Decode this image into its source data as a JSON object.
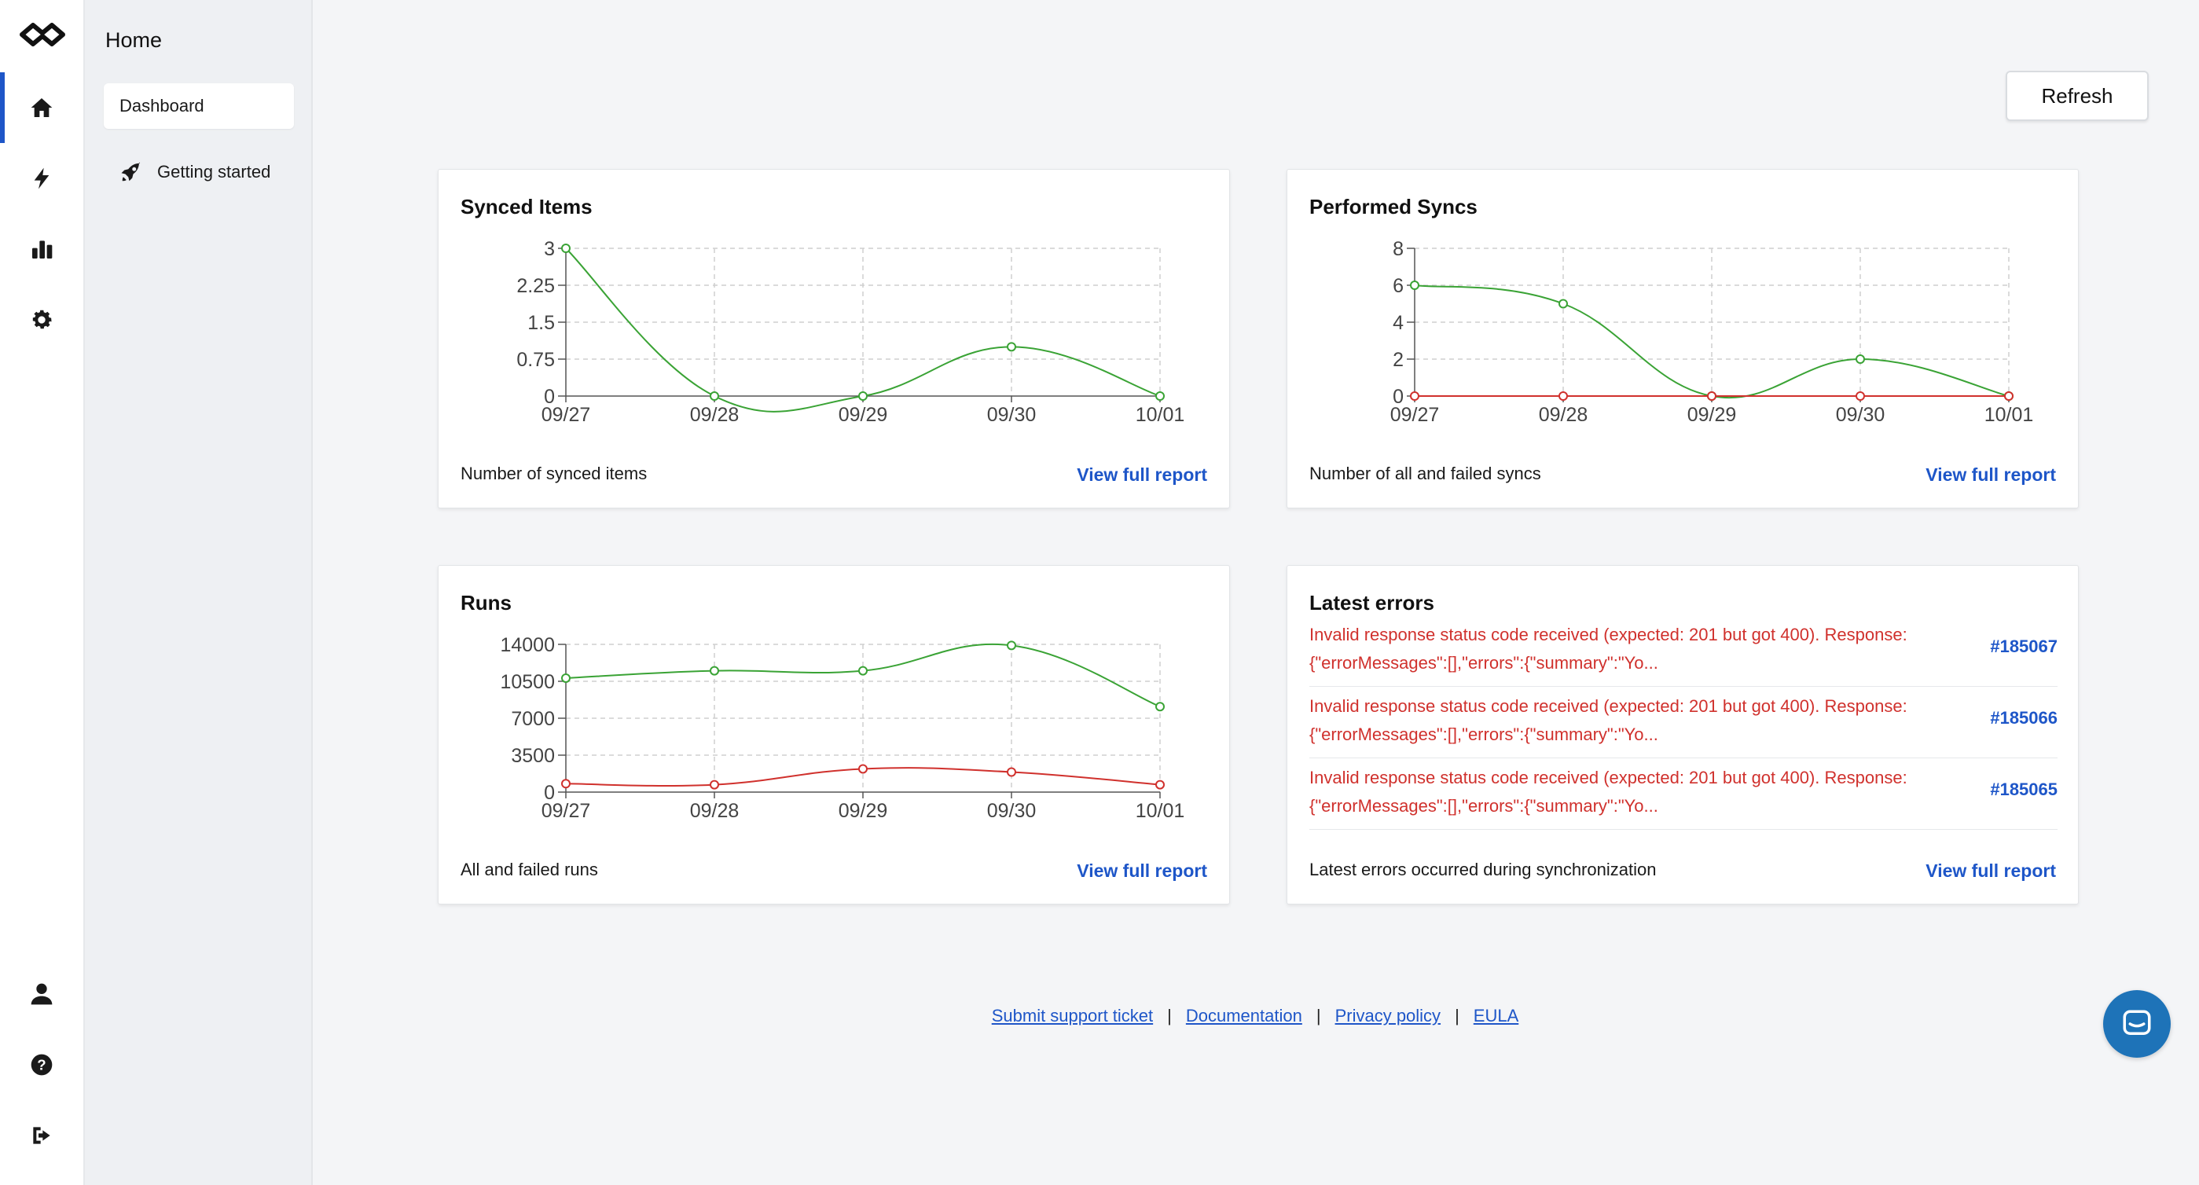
{
  "sidebar": {
    "section_title": "Home",
    "items": [
      {
        "label": "Dashboard"
      },
      {
        "label": "Getting started"
      }
    ]
  },
  "header": {
    "refresh_label": "Refresh"
  },
  "cards": {
    "synced_items": {
      "title": "Synced Items",
      "caption": "Number of synced items",
      "link": "View full report"
    },
    "performed_syncs": {
      "title": "Performed Syncs",
      "caption": "Number of all and failed syncs",
      "link": "View full report"
    },
    "runs": {
      "title": "Runs",
      "caption": "All and failed runs",
      "link": "View full report"
    },
    "latest_errors": {
      "title": "Latest errors",
      "caption": "Latest errors occurred during synchronization",
      "link": "View full report",
      "rows": [
        {
          "line1": "Invalid response status code received (expected: 201 but got 400). Response:",
          "line2": "{\"errorMessages\":[],\"errors\":{\"summary\":\"Yo...",
          "id": "#185067"
        },
        {
          "line1": "Invalid response status code received (expected: 201 but got 400). Response:",
          "line2": "{\"errorMessages\":[],\"errors\":{\"summary\":\"Yo...",
          "id": "#185066"
        },
        {
          "line1": "Invalid response status code received (expected: 201 but got 400). Response:",
          "line2": "{\"errorMessages\":[],\"errors\":{\"summary\":\"Yo...",
          "id": "#185065"
        }
      ]
    }
  },
  "footer": {
    "links": [
      "Submit support ticket",
      "Documentation",
      "Privacy policy",
      "EULA"
    ],
    "separator": "|"
  },
  "colors": {
    "accent": "#1e56c8",
    "success": "#3aa335",
    "error": "#d0312d"
  },
  "chart_data": [
    {
      "type": "line",
      "categories": [
        "09/27",
        "09/28",
        "09/29",
        "09/30",
        "10/01"
      ],
      "ylim": [
        0,
        3
      ],
      "yticks": [
        "0",
        "0.75",
        "1.5",
        "2.25",
        "3"
      ],
      "ytick_values": [
        0,
        0.75,
        1.5,
        2.25,
        3
      ],
      "series": [
        {
          "color": "#3aa335",
          "values": [
            3,
            0,
            0,
            1,
            0
          ]
        }
      ],
      "grid": true
    },
    {
      "type": "line",
      "categories": [
        "09/27",
        "09/28",
        "09/29",
        "09/30",
        "10/01"
      ],
      "ylim": [
        0,
        8
      ],
      "yticks": [
        "0",
        "2",
        "4",
        "6",
        "8"
      ],
      "ytick_values": [
        0,
        2,
        4,
        6,
        8
      ],
      "series": [
        {
          "color": "#3aa335",
          "values": [
            6,
            5,
            0,
            2,
            0
          ]
        },
        {
          "color": "#d0312d",
          "values": [
            0,
            0,
            0,
            0,
            0
          ]
        }
      ],
      "grid": true
    },
    {
      "type": "line",
      "categories": [
        "09/27",
        "09/28",
        "09/29",
        "09/30",
        "10/01"
      ],
      "ylim": [
        0,
        14000
      ],
      "yticks": [
        "0",
        "3500",
        "7000",
        "10500",
        "14000"
      ],
      "ytick_values": [
        0,
        3500,
        7000,
        10500,
        14000
      ],
      "series": [
        {
          "color": "#3aa335",
          "values": [
            10800,
            11500,
            11500,
            13900,
            8100
          ]
        },
        {
          "color": "#d0312d",
          "values": [
            800,
            700,
            2200,
            1900,
            700
          ]
        }
      ],
      "grid": true
    }
  ]
}
